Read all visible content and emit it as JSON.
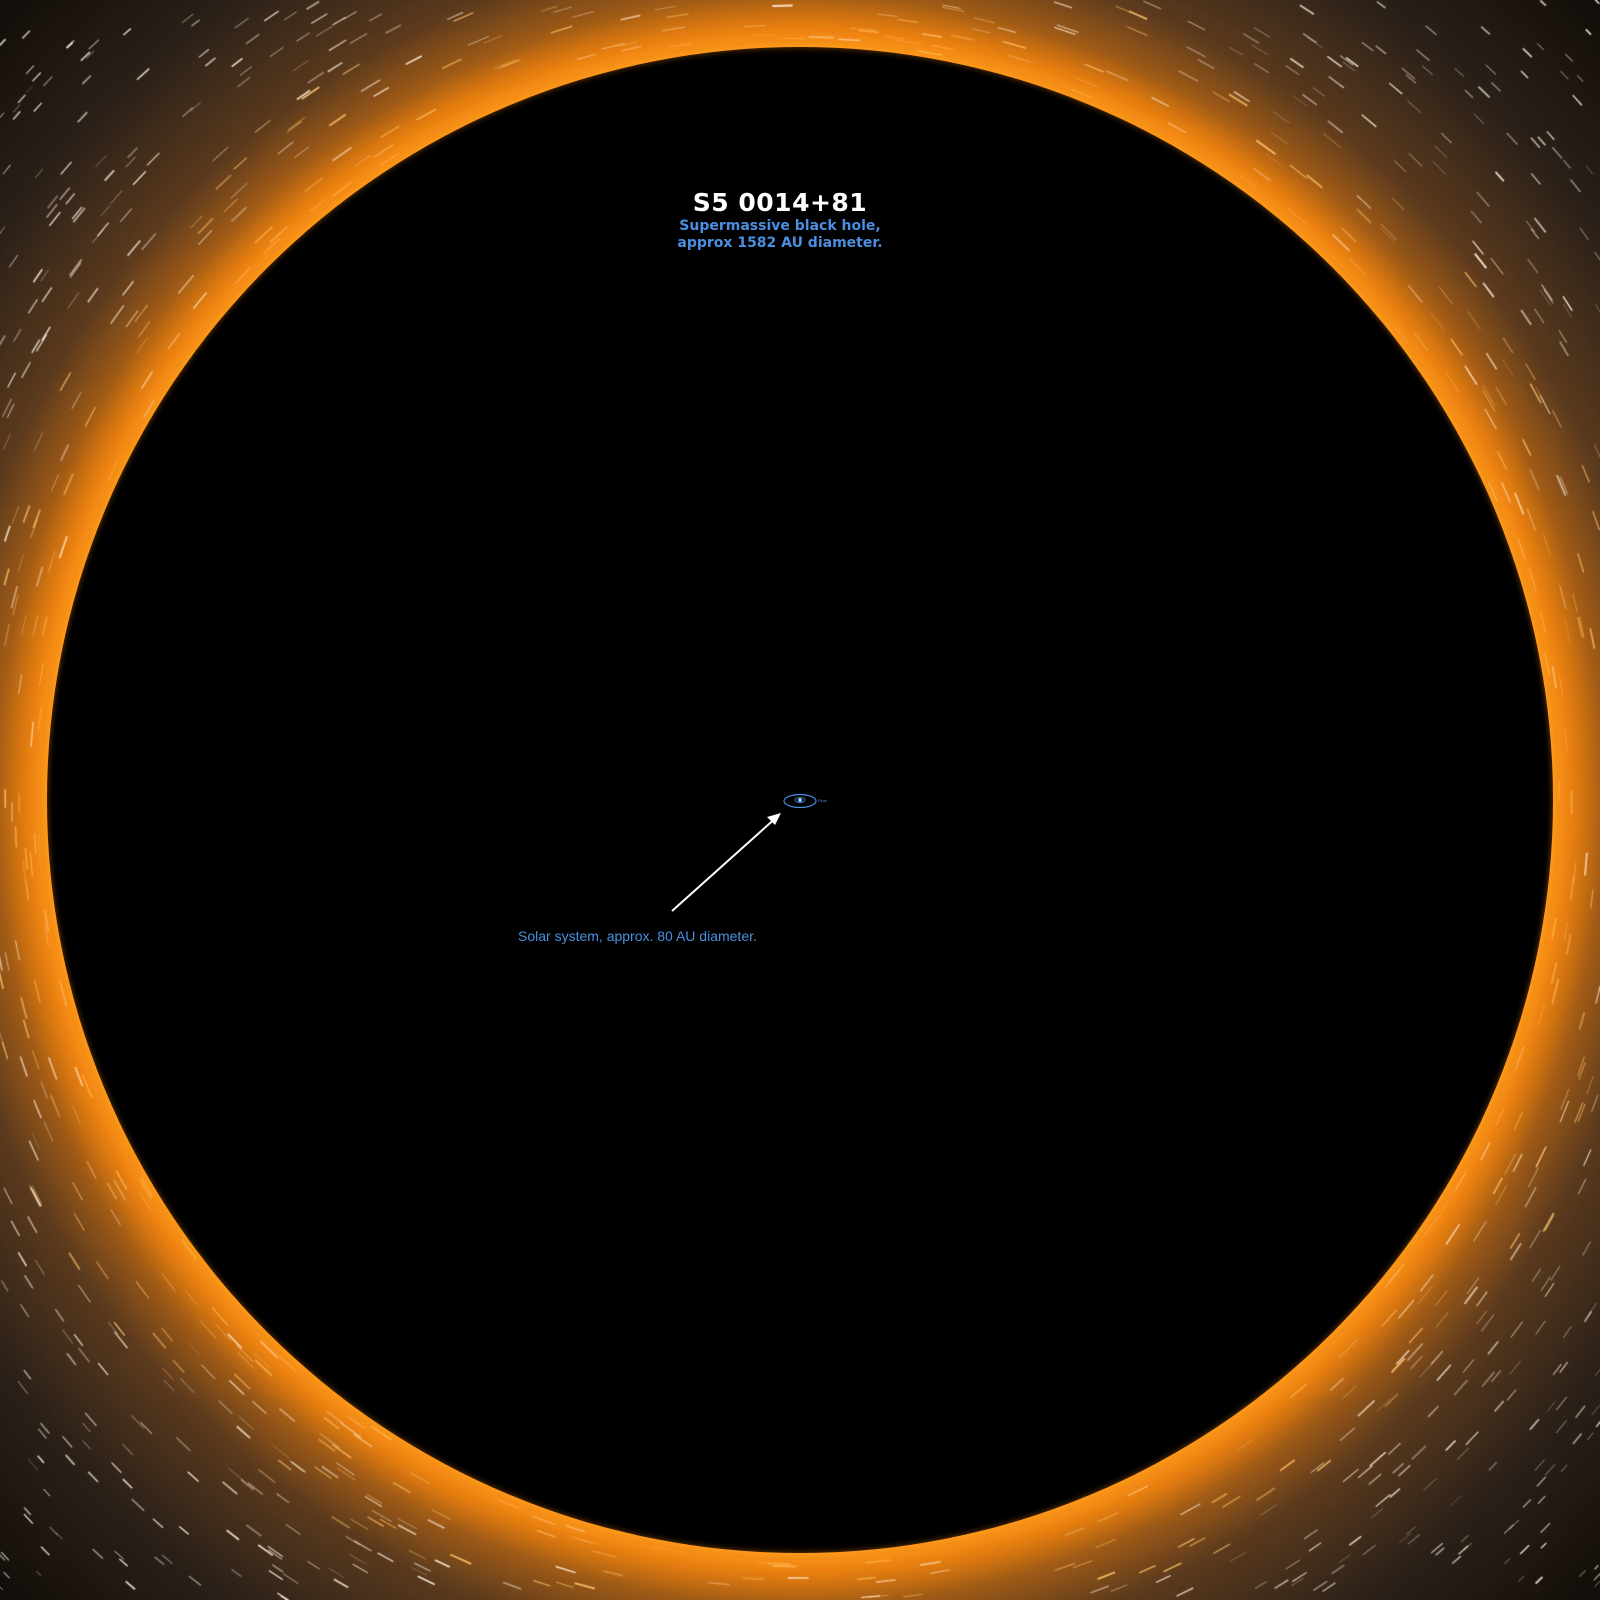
{
  "header": {
    "title": "S5 0014+81",
    "subtitle_line1": "Supermassive black hole,",
    "subtitle_line2": "approx 1582 AU diameter."
  },
  "annotation": {
    "solar_system_label": "Solar system, approx. 80 AU diameter.",
    "pluto_label": "Pluto"
  },
  "colors": {
    "accent_blue": "#4a8fe0",
    "ring_orange": "#ff9a1a",
    "title_white": "#ffffff",
    "event_horizon": "#000000"
  }
}
